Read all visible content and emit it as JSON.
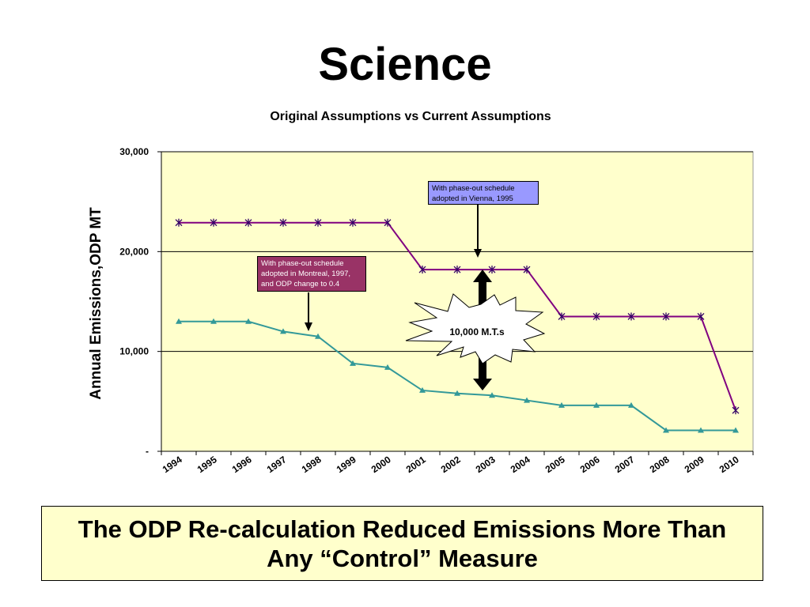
{
  "slide": {
    "title": "Science",
    "summary": "The ODP Re-calculation Reduced Emissions More Than Any “Control” Measure"
  },
  "chart_data": {
    "type": "line",
    "title": "Original Assumptions vs Current Assumptions",
    "xlabel": "",
    "ylabel": "Annual Emissions,ODP MT",
    "categories": [
      "1994",
      "1995",
      "1996",
      "1997",
      "1998",
      "1999",
      "2000",
      "2001",
      "2002",
      "2003",
      "2004",
      "2005",
      "2006",
      "2007",
      "2008",
      "2009",
      "2010"
    ],
    "ylim": [
      0,
      30000
    ],
    "yticks": [
      {
        "value": 0,
        "label": "-"
      },
      {
        "value": 10000,
        "label": "10,000"
      },
      {
        "value": 20000,
        "label": "20,000"
      },
      {
        "value": 30000,
        "label": "30,000"
      }
    ],
    "grid": true,
    "legend": "none",
    "plot_background": "#ffffcc",
    "series": [
      {
        "values": [
          22900,
          22900,
          22900,
          22900,
          22900,
          22900,
          22900,
          18200,
          18200,
          18200,
          18200,
          13500,
          13500,
          13500,
          13500,
          13500,
          4100
        ],
        "color": "#800080",
        "marker": "asterisk"
      },
      {
        "values": [
          13000,
          13000,
          13000,
          12000,
          11500,
          8800,
          8400,
          6100,
          5800,
          5600,
          5100,
          4600,
          4600,
          4600,
          2100,
          2100,
          2100
        ],
        "color": "#339999",
        "marker": "triangle"
      }
    ],
    "annotations": {
      "vienna": "With phase-out schedule adopted in Vienna, 1995",
      "montreal": "With phase-out schedule adopted in Montreal, 1997, and ODP change to 0.4",
      "gap": "10,000 M.T.s"
    },
    "colors": {
      "vienna_box": "#9999ff",
      "montreal_box": "#993366",
      "summary_box": "#ffffcc"
    }
  }
}
